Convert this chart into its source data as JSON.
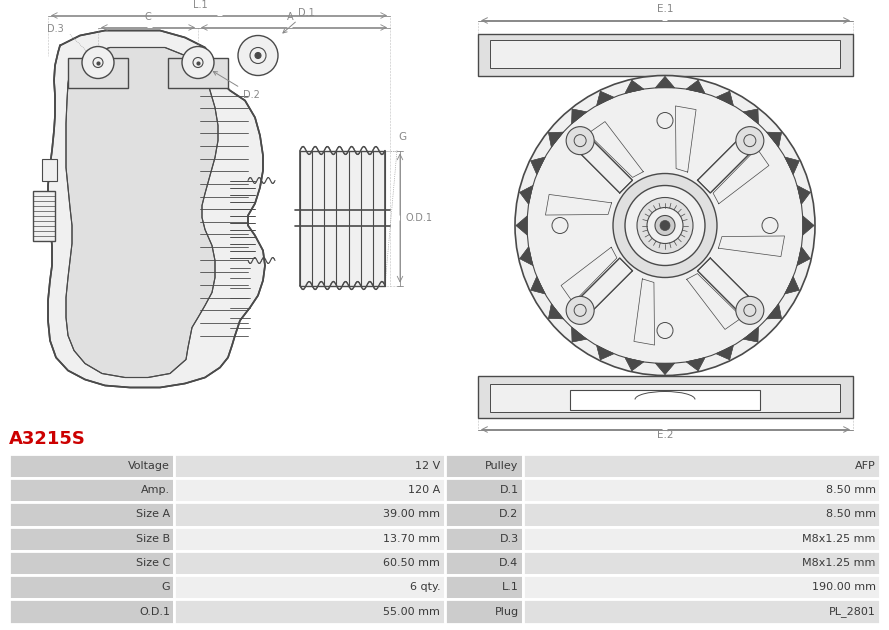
{
  "title": "A3215S",
  "title_color": "#cc0000",
  "bg_color": "#ffffff",
  "table_headers_bg": "#cccccc",
  "table_row_bg1": "#e0e0e0",
  "table_row_bg2": "#efefef",
  "table_border_color": "#ffffff",
  "table_data": [
    [
      "Voltage",
      "12 V",
      "Pulley",
      "AFP"
    ],
    [
      "Amp.",
      "120 A",
      "D.1",
      "8.50 mm"
    ],
    [
      "Size A",
      "39.00 mm",
      "D.2",
      "8.50 mm"
    ],
    [
      "Size B",
      "13.70 mm",
      "D.3",
      "M8x1.25 mm"
    ],
    [
      "Size C",
      "60.50 mm",
      "D.4",
      "M8x1.25 mm"
    ],
    [
      "G",
      "6 qty.",
      "L.1",
      "190.00 mm"
    ],
    [
      "O.D.1",
      "55.00 mm",
      "Plug",
      "PL_2801"
    ]
  ],
  "line_color": "#4a4a4a",
  "dim_color": "#888888",
  "fill_light": "#f0f0f0",
  "fill_mid": "#e0e0e0",
  "fill_dark": "#cccccc"
}
